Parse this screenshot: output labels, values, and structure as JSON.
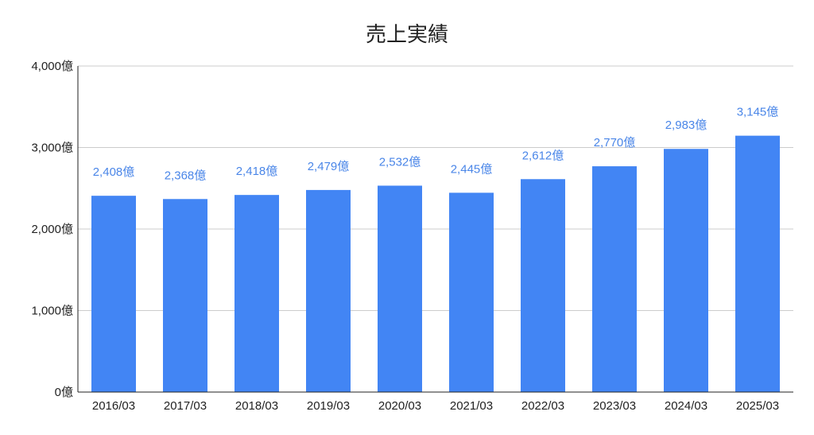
{
  "chart_data": {
    "type": "bar",
    "title": "売上実績",
    "xlabel": "",
    "ylabel": "",
    "categories": [
      "2016/03",
      "2017/03",
      "2018/03",
      "2019/03",
      "2020/03",
      "2021/03",
      "2022/03",
      "2023/03",
      "2024/03",
      "2025/03"
    ],
    "series": [
      {
        "values": [
          2408,
          2368,
          2418,
          2479,
          2532,
          2445,
          2612,
          2770,
          2983,
          3145
        ],
        "data_labels": [
          "2,408億",
          "2,368億",
          "2,418億",
          "2,479億",
          "2,532億",
          "2,445億",
          "2,612億",
          "2,770億",
          "2,983億",
          "3,145億"
        ],
        "color": "#4285f4"
      }
    ],
    "ylim": [
      0,
      4000
    ],
    "yticks": [
      0,
      1000,
      2000,
      3000,
      4000
    ],
    "ytick_labels": [
      "0億",
      "1,000億",
      "2,000億",
      "3,000億",
      "4,000億"
    ],
    "grid": true,
    "legend": "none",
    "label_color": "#4a86e8",
    "grid_color": "#cccccc",
    "axis_color": "#222222"
  }
}
